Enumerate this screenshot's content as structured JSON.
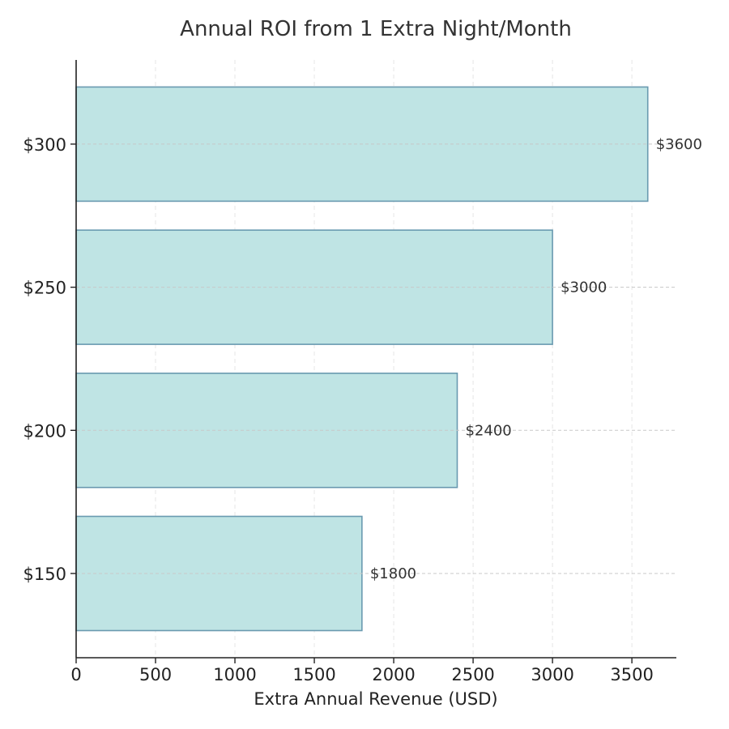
{
  "chart_data": {
    "type": "bar",
    "orientation": "horizontal",
    "title": "Annual ROI from 1 Extra Night/Month",
    "xlabel": "Extra Annual Revenue (USD)",
    "ylabel": "",
    "categories": [
      "$150",
      "$200",
      "$250",
      "$300"
    ],
    "values": [
      1800,
      2400,
      3000,
      3600
    ],
    "value_labels": [
      "$1800",
      "$2400",
      "$3000",
      "$3600"
    ],
    "xlim": [
      0,
      3780
    ],
    "x_ticks": [
      0,
      500,
      1000,
      1500,
      2000,
      2500,
      3000,
      3500
    ],
    "x_tick_labels": [
      "0",
      "500",
      "1000",
      "1500",
      "2000",
      "2500",
      "3000",
      "3500"
    ],
    "grid": true,
    "colors": {
      "bar_fill": "#bfe4e4",
      "bar_edge": "#6a9ab0",
      "grid": "#d0d0d0",
      "axis": "#222222"
    }
  }
}
